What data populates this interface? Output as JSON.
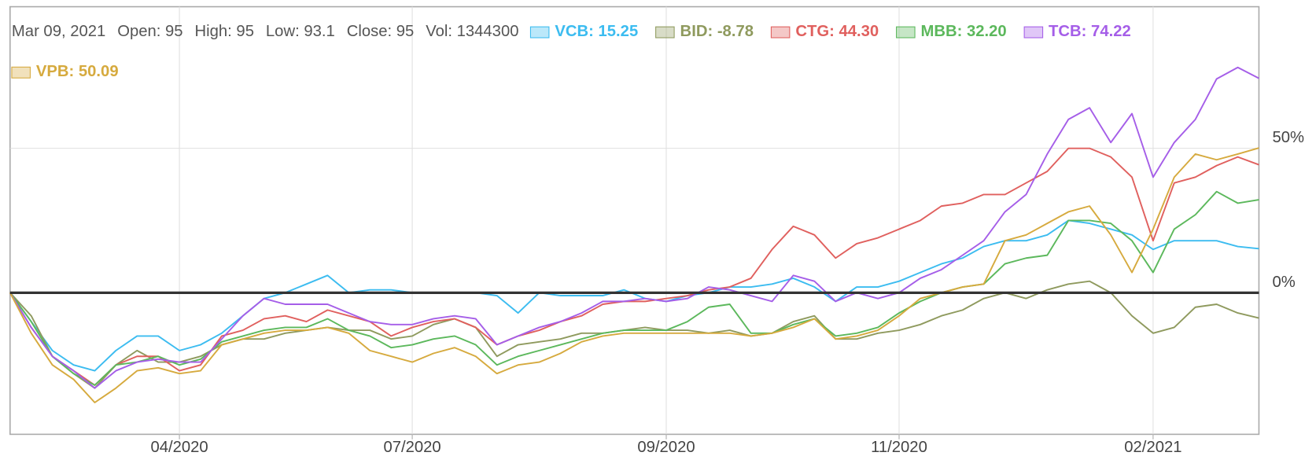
{
  "chart_data": {
    "type": "line",
    "info": [
      "Mar 09, 2021",
      "Open: 95",
      "High: 95",
      "Low: 93.1",
      "Close: 95",
      "Vol: 1344300"
    ],
    "categories": [
      null,
      null,
      null,
      null,
      null,
      null,
      null,
      null,
      "04/2020",
      null,
      null,
      null,
      null,
      null,
      null,
      null,
      null,
      null,
      null,
      "07/2020",
      null,
      null,
      null,
      null,
      null,
      null,
      null,
      null,
      null,
      null,
      null,
      "09/2020",
      null,
      null,
      null,
      null,
      null,
      null,
      null,
      null,
      null,
      null,
      "11/2020",
      null,
      null,
      null,
      null,
      null,
      null,
      null,
      null,
      null,
      null,
      null,
      "02/2021",
      null,
      null,
      null,
      null,
      null
    ],
    "ylim": [
      -49,
      99
    ],
    "yticks": [
      {
        "value": 0,
        "label": "0%"
      },
      {
        "value": 50,
        "label": "50%"
      }
    ],
    "grid": true,
    "zero_line": true,
    "series": [
      {
        "name": "VCB: 15.25",
        "color": "#3cbcf0",
        "values": [
          0,
          -10,
          -20,
          -25,
          -27,
          -20,
          -15,
          -15,
          -20,
          -18,
          -14,
          -8,
          -2,
          0,
          3,
          6,
          0,
          1,
          1,
          0,
          0,
          0,
          0,
          -1,
          -7,
          0,
          -1,
          -1,
          -1,
          1,
          -2,
          -3,
          -1,
          0,
          2,
          2,
          3,
          5,
          2,
          -3,
          2,
          2,
          4,
          7,
          10,
          12,
          16,
          18,
          18,
          20,
          25,
          24,
          22,
          20,
          15,
          18,
          18,
          18,
          16,
          15.25
        ]
      },
      {
        "name": "BID: -8.78",
        "color": "#8f9a5e",
        "values": [
          0,
          -8,
          -22,
          -28,
          -33,
          -25,
          -20,
          -24,
          -24,
          -22,
          -18,
          -16,
          -16,
          -14,
          -13,
          -12,
          -13,
          -13,
          -16,
          -15,
          -11,
          -9,
          -12,
          -22,
          -18,
          -17,
          -16,
          -14,
          -14,
          -13,
          -12,
          -13,
          -13,
          -14,
          -13,
          -15,
          -14,
          -10,
          -8,
          -16,
          -16,
          -14,
          -13,
          -11,
          -8,
          -6,
          -2,
          0,
          -2,
          1,
          3,
          4,
          0,
          -8,
          -14,
          -12,
          -5,
          -4,
          -7,
          -8.78
        ]
      },
      {
        "name": "CTG: 44.30",
        "color": "#e0605e",
        "values": [
          0,
          -12,
          -22,
          -27,
          -32,
          -25,
          -22,
          -22,
          -27,
          -25,
          -15,
          -13,
          -9,
          -8,
          -10,
          -6,
          -8,
          -10,
          -15,
          -12,
          -10,
          -9,
          -12,
          -18,
          -15,
          -13,
          -10,
          -8,
          -4,
          -3,
          -3,
          -2,
          -1,
          1,
          2,
          5,
          15,
          23,
          20,
          12,
          17,
          19,
          22,
          25,
          30,
          31,
          34,
          34,
          38,
          42,
          50,
          50,
          47,
          40,
          18,
          38,
          40,
          44,
          47,
          44.3
        ]
      },
      {
        "name": "MBB: 32.20",
        "color": "#5cb85c",
        "values": [
          0,
          -10,
          -22,
          -28,
          -32,
          -25,
          -24,
          -22,
          -25,
          -23,
          -17,
          -15,
          -13,
          -12,
          -12,
          -9,
          -13,
          -15,
          -19,
          -18,
          -16,
          -15,
          -18,
          -25,
          -22,
          -20,
          -18,
          -16,
          -14,
          -13,
          -13,
          -13,
          -10,
          -5,
          -4,
          -14,
          -14,
          -11,
          -9,
          -15,
          -14,
          -12,
          -7,
          -3,
          0,
          2,
          3,
          10,
          12,
          13,
          25,
          25,
          24,
          18,
          7,
          22,
          27,
          35,
          31,
          32.2
        ]
      },
      {
        "name": "TCB: 74.22",
        "color": "#a55ee8",
        "values": [
          0,
          -12,
          -22,
          -27,
          -33,
          -27,
          -24,
          -23,
          -24,
          -24,
          -16,
          -8,
          -2,
          -4,
          -4,
          -4,
          -7,
          -10,
          -11,
          -11,
          -9,
          -8,
          -9,
          -18,
          -15,
          -12,
          -10,
          -7,
          -3,
          -3,
          -2,
          -3,
          -2,
          2,
          1,
          -1,
          -3,
          6,
          4,
          -3,
          0,
          -2,
          0,
          5,
          8,
          13,
          18,
          28,
          34,
          48,
          60,
          64,
          52,
          62,
          40,
          52,
          60,
          74,
          78,
          74.22
        ]
      },
      {
        "name": "VPB: 50.09",
        "color": "#d6aa3e",
        "values": [
          0,
          -14,
          -25,
          -30,
          -38,
          -33,
          -27,
          -26,
          -28,
          -27,
          -18,
          -16,
          -14,
          -13,
          -13,
          -12,
          -14,
          -20,
          -22,
          -24,
          -21,
          -19,
          -22,
          -28,
          -25,
          -24,
          -21,
          -17,
          -15,
          -14,
          -14,
          -14,
          -14,
          -14,
          -14,
          -15,
          -14,
          -12,
          -9,
          -16,
          -15,
          -13,
          -8,
          -2,
          0,
          2,
          3,
          18,
          20,
          24,
          28,
          30,
          20,
          7,
          22,
          40,
          48,
          46,
          48,
          50.09
        ]
      }
    ]
  }
}
